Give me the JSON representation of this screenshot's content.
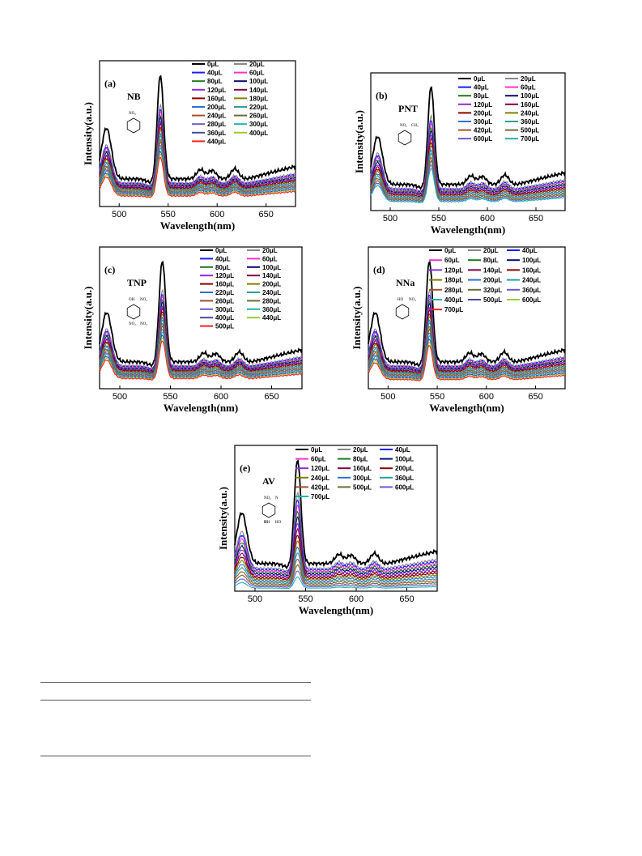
{
  "chart_data": [
    {
      "type": "line",
      "panel_label": "(a)",
      "compound": "NB",
      "molecule": "nitrobenzene",
      "substituent_labels": [
        "NO₂"
      ],
      "xlabel": "Wavelength(nm)",
      "ylabel": "Intensity(a.u.)",
      "xlim": [
        480,
        680
      ],
      "x_ticks": [
        500,
        550,
        600,
        650
      ],
      "legend_columns": 2,
      "series_names": [
        "0μL",
        "20μL",
        "40μL",
        "60μL",
        "80μL",
        "100μL",
        "120μL",
        "140μL",
        "160μL",
        "180μL",
        "200μL",
        "220μL",
        "240μL",
        "260μL",
        "280μL",
        "300μL",
        "360μL",
        "400μL",
        "440μL"
      ],
      "first_scale": 1.0,
      "decay": 0.55
    },
    {
      "type": "line",
      "panel_label": "(b)",
      "compound": "PNT",
      "molecule": "p-nitrotoluene",
      "substituent_labels": [
        "NO₂",
        "CH₃"
      ],
      "xlabel": "Wavelength(nm)",
      "ylabel": "Intensity(a.u.)",
      "xlim": [
        480,
        680
      ],
      "x_ticks": [
        500,
        550,
        600,
        650
      ],
      "legend_columns": 2,
      "series_names": [
        "0μL",
        "20μL",
        "40μL",
        "60μL",
        "80μL",
        "100μL",
        "120μL",
        "160μL",
        "200μL",
        "240μL",
        "300μL",
        "360μL",
        "420μL",
        "500μL",
        "600μL",
        "700μL"
      ],
      "first_scale": 1.0,
      "decay": 0.6
    },
    {
      "type": "line",
      "panel_label": "(c)",
      "compound": "TNP",
      "molecule": "trinitrophenol",
      "substituent_labels": [
        "OH",
        "NO₂",
        "NO₂",
        "NO₂"
      ],
      "xlabel": "Wavelength(nm)",
      "ylabel": "Intensity(a.u.)",
      "xlim": [
        480,
        680
      ],
      "x_ticks": [
        500,
        550,
        600,
        650
      ],
      "legend_columns": 2,
      "series_names": [
        "0μL",
        "20μL",
        "40μL",
        "60μL",
        "80μL",
        "100μL",
        "120μL",
        "140μL",
        "160μL",
        "200μL",
        "220μL",
        "240μL",
        "260μL",
        "280μL",
        "300μL",
        "360μL",
        "400μL",
        "440μL",
        "500μL"
      ],
      "first_scale": 1.0,
      "decay": 0.55
    },
    {
      "type": "line",
      "panel_label": "(d)",
      "compound": "NNa",
      "molecule": "nitronaphthol",
      "substituent_labels": [
        "HO",
        "NO₂"
      ],
      "xlabel": "Wavelength(nm)",
      "ylabel": "Intensity(a.u.)",
      "xlim": [
        480,
        680
      ],
      "x_ticks": [
        500,
        550,
        600,
        650
      ],
      "legend_columns": 3,
      "series_names": [
        "0μL",
        "20μL",
        "40μL",
        "60μL",
        "80μL",
        "100μL",
        "120μL",
        "140μL",
        "160μL",
        "180μL",
        "200μL",
        "240μL",
        "280μL",
        "320μL",
        "360μL",
        "400μL",
        "500μL",
        "600μL",
        "700μL"
      ],
      "first_scale": 1.0,
      "decay": 0.6
    },
    {
      "type": "line",
      "panel_label": "(e)",
      "compound": "AV",
      "molecule": "azo violet",
      "substituent_labels": [
        "NO₂",
        "N",
        "N",
        "HO",
        "OH"
      ],
      "xlabel": "Wavelength(nm)",
      "ylabel": "Intensity(a.u.)",
      "xlim": [
        480,
        680
      ],
      "x_ticks": [
        500,
        550,
        600,
        650
      ],
      "legend_columns": 3,
      "series_names": [
        "0μL",
        "20μL",
        "40μL",
        "60μL",
        "80μL",
        "100μL",
        "120μL",
        "160μL",
        "200μL",
        "240μL",
        "300μL",
        "360μL",
        "420μL",
        "500μL",
        "600μL",
        "700μL"
      ],
      "first_scale": 1.0,
      "decay": 0.92
    }
  ],
  "series_colors": [
    "#000000",
    "#888888",
    "#1a1aff",
    "#ff33cc",
    "#1f7a1f",
    "#0a0a7a",
    "#8a2be2",
    "#800040",
    "#8b0000",
    "#808000",
    "#2f6fd6",
    "#2aa198",
    "#a0522d",
    "#6b6b3a",
    "#6a5acd",
    "#20b2aa",
    "#4a4a9a",
    "#9acd32",
    "#ff2020"
  ]
}
